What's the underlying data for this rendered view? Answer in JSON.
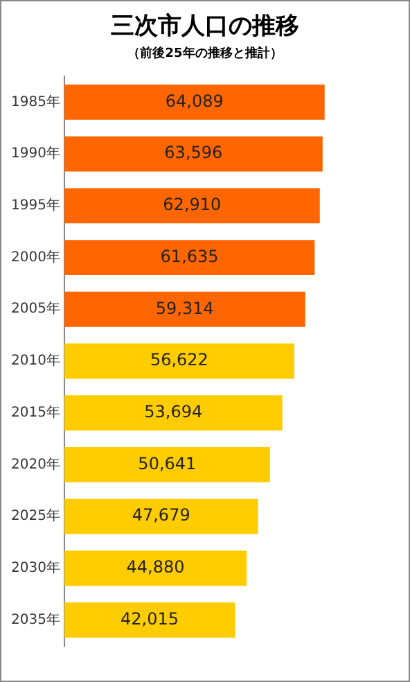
{
  "chart_data": {
    "type": "bar",
    "orientation": "horizontal",
    "title": "三次市人口の推移",
    "subtitle": "（前後25年の推移と推計）",
    "categories": [
      "1985年",
      "1990年",
      "1995年",
      "2000年",
      "2005年",
      "2010年",
      "2015年",
      "2020年",
      "2025年",
      "2030年",
      "2035年"
    ],
    "values": [
      64089,
      63596,
      62910,
      61635,
      59314,
      56622,
      53694,
      50641,
      47679,
      44880,
      42015
    ],
    "colors": [
      "#ff6600",
      "#ff6600",
      "#ff6600",
      "#ff6600",
      "#ff6600",
      "#ffcc00",
      "#ffcc00",
      "#ffcc00",
      "#ffcc00",
      "#ffcc00",
      "#ffcc00"
    ],
    "value_labels": [
      "64,089",
      "63,596",
      "62,910",
      "61,635",
      "59,314",
      "56,622",
      "53,694",
      "50,641",
      "47,679",
      "44,880",
      "42,015"
    ],
    "grid": false,
    "legend": false
  }
}
